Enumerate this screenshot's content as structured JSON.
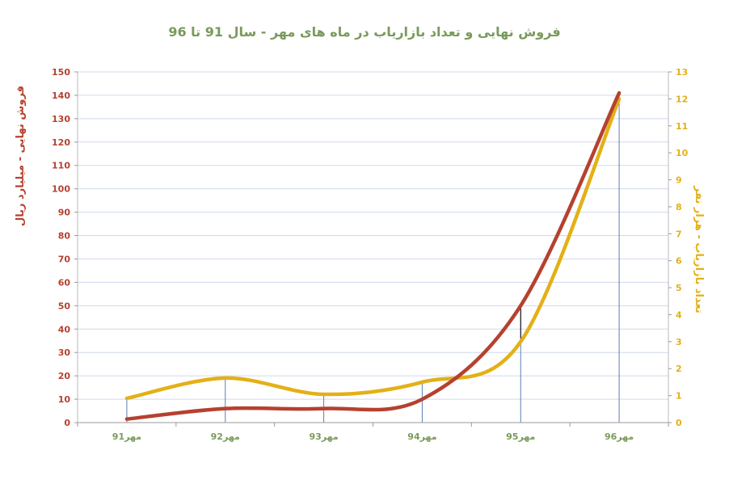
{
  "chart_data": {
    "type": "line",
    "title": "فروش نهایی و تعداد بازاریاب در ماه های مهر - سال 91 تا 96",
    "xlabel": "",
    "categories": [
      "مهر91",
      "مهر92",
      "مهر93",
      "مهر94",
      "مهر95",
      "مهر96"
    ],
    "y1": {
      "label": "فروش نهایی - میلیارد ریال",
      "ylim": [
        0,
        150
      ],
      "ticks": [
        0,
        10,
        20,
        30,
        40,
        50,
        60,
        70,
        80,
        90,
        100,
        110,
        120,
        130,
        140,
        150
      ]
    },
    "y2": {
      "label": "تعداد بازاریاب - هزار نفر",
      "ylim": [
        0,
        13
      ],
      "ticks": [
        0,
        1,
        2,
        3,
        4,
        5,
        6,
        7,
        8,
        9,
        10,
        11,
        12,
        13
      ]
    },
    "series": [
      {
        "axis": "y1",
        "color": "#b5412f",
        "values": [
          1.5,
          6,
          6,
          10,
          50,
          141
        ]
      },
      {
        "axis": "y2",
        "color": "#e3b017",
        "values": [
          0.9,
          1.65,
          1.05,
          1.5,
          3,
          12
        ]
      }
    ],
    "grid": true,
    "colors": {
      "y1_axis": "#b5412f",
      "y2_axis": "#e3b017",
      "title": "#7a9a5a",
      "category": "#7a9a5a",
      "grid": "#cfd9ec"
    }
  }
}
